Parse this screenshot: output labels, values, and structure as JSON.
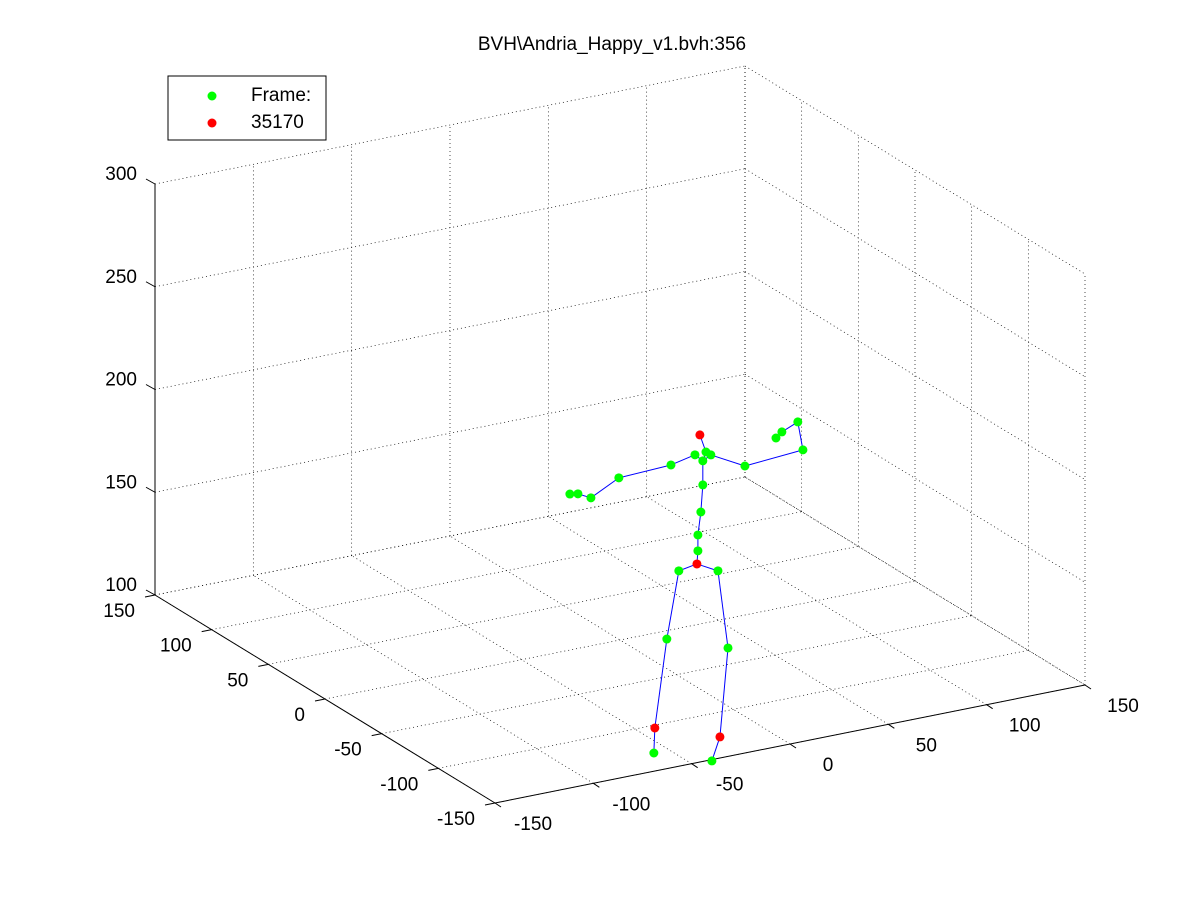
{
  "chart_data": {
    "type": "scatter3d",
    "title": "BVH\\Andria_Happy_v1.bvh:356",
    "xlim": [
      -150,
      150
    ],
    "xticks": [
      -150,
      -100,
      -50,
      0,
      50,
      100,
      150
    ],
    "ylim": [
      -150,
      150
    ],
    "yticks": [
      -150,
      -100,
      -50,
      0,
      50,
      100,
      150
    ],
    "zlim": [
      100,
      300
    ],
    "zticks": [
      100,
      150,
      200,
      250,
      300
    ],
    "grid": true,
    "legend": "upper left",
    "line_color": "#0000ff",
    "series": [
      {
        "name": "Frame:",
        "color": "#00ff00",
        "x": [
          1.1,
          21.0,
          -5.0,
          26.1,
          -11.6,
          17.9,
          10.8,
          10.8,
          12.3,
          13.3,
          13.3,
          14.9,
          9.3,
          17.4,
          -2.9,
          -29.4,
          -43.6,
          -50.2,
          -54.3,
          34.7,
          64.2,
          61.6,
          53.5,
          50.5
        ],
        "y": [
          -50,
          -50,
          -50,
          -50,
          -50,
          -50,
          -50,
          -50,
          -50,
          -50,
          -50,
          -50,
          -50,
          -50,
          -50,
          -50,
          -50,
          -50,
          -50,
          -50,
          -50,
          -50,
          -50,
          -50
        ],
        "z": [
          150.3,
          146.5,
          118.3,
          108.0,
          64.1,
          54.6,
          158.2,
          165.9,
          176.8,
          189.8,
          201.5,
          205.5,
          205.2,
          203.6,
          202.6,
          201.4,
          194.4,
          197.6,
          198.3,
          194.9,
          197.1,
          211.2,
          207.9,
          205.5
        ]
      },
      {
        "name": "35170",
        "color": "#ff0000",
        "x": [
          11.8,
          10.3,
          -11.1,
          22.0
        ],
        "y": [
          -50,
          -50,
          -50,
          -50
        ],
        "z": [
          214.4,
          151.9,
          76.2,
          65.5
        ]
      }
    ]
  }
}
